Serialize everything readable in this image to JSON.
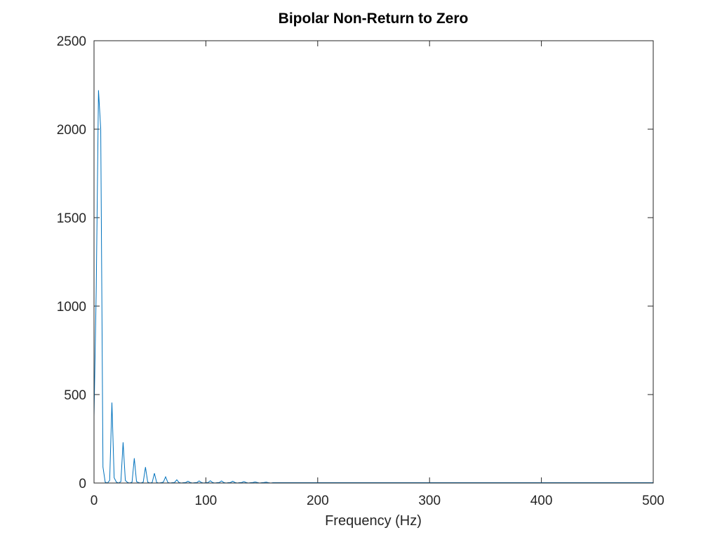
{
  "chart_data": {
    "type": "line",
    "title": "Bipolar Non-Return to Zero",
    "xlabel": "Frequency (Hz)",
    "ylabel": "",
    "xlim": [
      0,
      500
    ],
    "ylim": [
      0,
      2500
    ],
    "xticks": [
      0,
      100,
      200,
      300,
      400,
      500
    ],
    "yticks": [
      0,
      500,
      1000,
      1500,
      2000,
      2500
    ],
    "grid": false,
    "box": true,
    "series": [
      {
        "color": "#0072bd",
        "x": [
          0,
          2,
          4,
          6,
          8,
          10,
          12,
          14,
          16,
          18,
          20,
          22,
          24,
          26,
          28,
          30,
          32,
          34,
          36,
          38,
          40,
          42,
          44,
          46,
          48,
          50,
          52,
          54,
          56,
          58,
          60,
          62,
          64,
          66,
          68,
          70,
          72,
          74,
          76,
          78,
          80,
          82,
          84,
          86,
          88,
          90,
          92,
          94,
          96,
          98,
          100,
          102,
          104,
          106,
          108,
          110,
          112,
          114,
          116,
          118,
          120,
          122,
          124,
          126,
          128,
          130,
          132,
          134,
          136,
          138,
          140,
          142,
          144,
          146,
          148,
          150,
          152,
          154,
          156,
          158,
          160,
          170,
          180,
          190,
          200,
          210,
          220,
          230,
          240,
          250,
          260,
          270,
          280,
          290,
          300,
          310,
          320,
          330,
          340,
          350,
          360,
          370,
          380,
          390,
          400,
          410,
          420,
          430,
          440,
          450,
          460,
          470,
          480,
          490,
          500
        ],
        "y": [
          375,
          1100,
          2220,
          2000,
          90,
          5,
          0,
          15,
          455,
          30,
          5,
          0,
          8,
          230,
          15,
          3,
          0,
          5,
          140,
          8,
          2,
          0,
          5,
          90,
          5,
          0,
          3,
          55,
          3,
          0,
          2,
          5,
          35,
          3,
          0,
          2,
          3,
          18,
          3,
          0,
          2,
          3,
          10,
          3,
          0,
          2,
          3,
          12,
          3,
          0,
          2,
          3,
          13,
          3,
          0,
          2,
          3,
          12,
          3,
          0,
          2,
          3,
          10,
          3,
          0,
          2,
          3,
          8,
          3,
          0,
          2,
          3,
          6,
          3,
          0,
          2,
          3,
          5,
          2,
          0,
          2,
          2,
          2,
          2,
          2,
          2,
          2,
          2,
          2,
          2,
          2,
          2,
          2,
          2,
          2,
          2,
          2,
          2,
          2,
          2,
          2,
          2,
          2,
          2,
          2,
          2,
          2,
          2,
          2,
          2,
          2,
          2,
          2,
          2,
          2
        ]
      }
    ]
  }
}
